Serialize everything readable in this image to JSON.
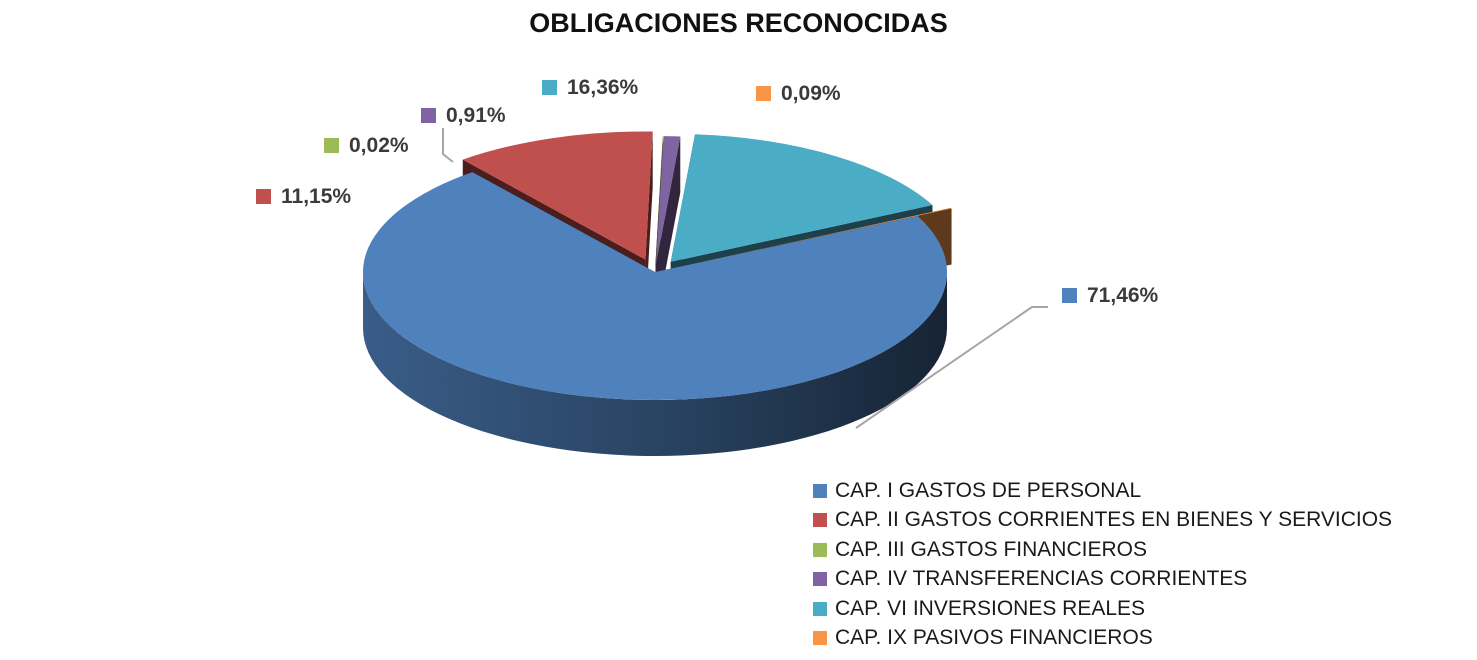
{
  "chart_data": {
    "type": "pie",
    "title": "OBLIGACIONES RECONOCIDAS",
    "categories": [
      "CAP. I GASTOS DE PERSONAL",
      "CAP. II GASTOS CORRIENTES EN BIENES Y SERVICIOS",
      "CAP. III GASTOS FINANCIEROS",
      "CAP. IV TRANSFERENCIAS CORRIENTES",
      "CAP. VI INVERSIONES REALES",
      "CAP. IX PASIVOS FINANCIEROS"
    ],
    "values": [
      71.46,
      11.15,
      0.02,
      0.91,
      16.36,
      0.09
    ],
    "labels": [
      "71,46%",
      "11,15%",
      "0,02%",
      "0,91%",
      "16,36%",
      "0,09%"
    ],
    "colors": [
      "#4f81bd",
      "#c0504d",
      "#9bbb59",
      "#8064a2",
      "#4bacc6",
      "#f79646"
    ],
    "style": "3d-exploded",
    "legend": "bottom-right"
  }
}
